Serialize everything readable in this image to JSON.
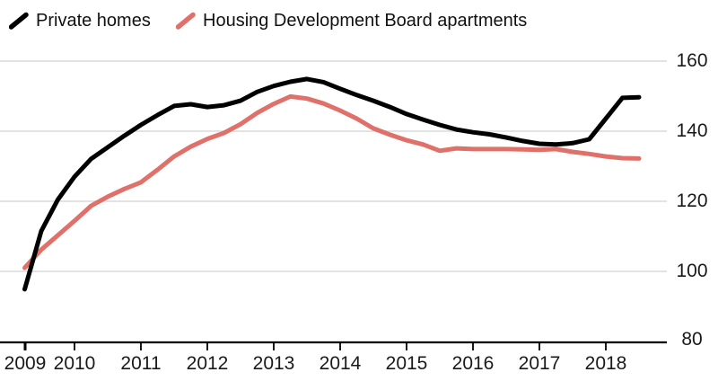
{
  "legend": {
    "items": [
      {
        "label": "Private homes",
        "color": "#000000",
        "icon": "line-swatch"
      },
      {
        "label": "Housing Development Board apartments",
        "color": "#e0706a",
        "icon": "line-swatch"
      }
    ]
  },
  "chart_data": {
    "type": "line",
    "title": "",
    "frequency": "quarterly",
    "period_start": "2009 Q2",
    "period_end": "2018 Q3",
    "grid": "horizontal",
    "legend_position": "top-left",
    "y_axis_side": "right",
    "ylim": [
      80,
      160
    ],
    "x_ticks": [
      "2009",
      "2010",
      "2011",
      "2012",
      "2013",
      "2014",
      "2015",
      "2016",
      "2017",
      "2018"
    ],
    "y_ticks": [
      160,
      140,
      120,
      100,
      80
    ],
    "series": [
      {
        "name": "Private homes",
        "color": "#000000",
        "values": [
          94.9,
          111.5,
          120.5,
          127.0,
          132.1,
          135.4,
          138.7,
          141.8,
          144.6,
          147.2,
          147.7,
          146.9,
          147.4,
          148.7,
          151.2,
          152.9,
          154.1,
          154.9,
          154.0,
          152.1,
          150.3,
          148.7,
          146.9,
          144.9,
          143.3,
          141.8,
          140.5,
          139.7,
          139.1,
          138.2,
          137.2,
          136.4,
          136.2,
          136.6,
          137.7,
          143.6,
          149.5,
          149.7
        ]
      },
      {
        "name": "Housing Development Board apartments",
        "color": "#e0706a",
        "values": [
          101.0,
          106.2,
          110.3,
          114.4,
          118.7,
          121.3,
          123.5,
          125.4,
          129.0,
          132.8,
          135.6,
          137.8,
          139.5,
          142.0,
          145.2,
          147.8,
          149.9,
          149.3,
          147.9,
          145.9,
          143.6,
          140.8,
          139.0,
          137.4,
          136.2,
          134.4,
          135.1,
          134.9,
          134.9,
          134.9,
          134.8,
          134.7,
          134.9,
          134.1,
          133.5,
          132.8,
          132.3,
          132.2
        ]
      }
    ]
  }
}
